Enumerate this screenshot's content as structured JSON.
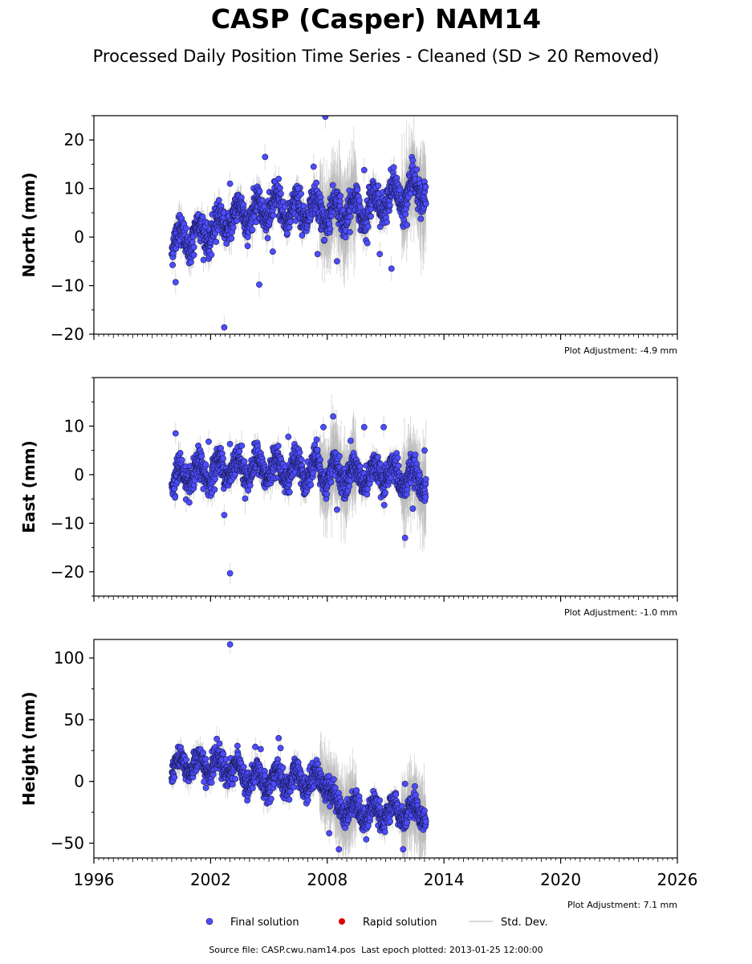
{
  "title": "CASP (Casper) NAM14",
  "subtitle": "Processed Daily Position Time Series - Cleaned (SD > 20 Removed)",
  "footer": {
    "source_label": "Source file:",
    "source_file": "CASP.cwu.nam14.pos",
    "last_epoch_label": "Last epoch plotted:",
    "last_epoch": "2013-01-25 12:00:00"
  },
  "legend": {
    "position": "bottom-center",
    "items": [
      {
        "label": "Final solution",
        "color": "#4444ee",
        "marker": "circle"
      },
      {
        "label": "Rapid solution",
        "color": "#dd0000",
        "marker": "circle"
      },
      {
        "label": "Std. Dev.",
        "color": "#cccccc",
        "marker": "line"
      }
    ]
  },
  "colors": {
    "final_fill": "#4d4dff",
    "final_edge": "#1a1a55",
    "sd_line": "#b8b8b8",
    "axis": "#000000"
  },
  "chart_data": [
    {
      "type": "scatter",
      "ylabel": "North (mm)",
      "xlim": [
        1996,
        2026
      ],
      "ylim": [
        -20,
        25
      ],
      "yticks": [
        -20,
        -10,
        0,
        10,
        20
      ],
      "xticks": [
        1996,
        2002,
        2008,
        2014,
        2020,
        2026
      ],
      "adjustment": "Plot Adjustment: -4.9 mm",
      "data_start": 2000.0,
      "data_end": 2013.07,
      "trend": [
        [
          2000.0,
          -1
        ],
        [
          2002.0,
          1
        ],
        [
          2003.0,
          4
        ],
        [
          2005.0,
          6
        ],
        [
          2008.0,
          5
        ],
        [
          2010.0,
          6
        ],
        [
          2012.0,
          9
        ],
        [
          2013.07,
          10
        ]
      ],
      "seasonal_amplitude": 2.5,
      "scatter_sd": 1.6,
      "outliers": [
        [
          2000.2,
          -9.3
        ],
        [
          2002.7,
          -18.6
        ],
        [
          2003.0,
          11.0
        ],
        [
          2004.5,
          -9.8
        ],
        [
          2004.8,
          16.5
        ],
        [
          2005.5,
          12.0
        ],
        [
          2006.5,
          10.0
        ],
        [
          2007.3,
          14.5
        ],
        [
          2007.9,
          24.8
        ],
        [
          2008.5,
          -5.0
        ],
        [
          2009.9,
          13.8
        ],
        [
          2010.7,
          -3.5
        ],
        [
          2011.3,
          -6.5
        ],
        [
          2012.4,
          15.8
        ],
        [
          2012.1,
          2.5
        ],
        [
          2005.2,
          -3.0
        ],
        [
          2007.5,
          -3.5
        ]
      ]
    },
    {
      "type": "scatter",
      "ylabel": "East (mm)",
      "xlim": [
        1996,
        2026
      ],
      "ylim": [
        -25,
        20
      ],
      "yticks": [
        -20,
        -10,
        0,
        10
      ],
      "xticks": [
        1996,
        2002,
        2008,
        2014,
        2020,
        2026
      ],
      "adjustment": "Plot Adjustment: -1.0 mm",
      "data_start": 2000.0,
      "data_end": 2013.07,
      "trend": [
        [
          2000.0,
          -1
        ],
        [
          2003.0,
          1.5
        ],
        [
          2006.0,
          1
        ],
        [
          2009.0,
          0
        ],
        [
          2011.0,
          0
        ],
        [
          2013.07,
          -1
        ]
      ],
      "seasonal_amplitude": 2.2,
      "scatter_sd": 1.4,
      "outliers": [
        [
          2000.2,
          8.5
        ],
        [
          2001.9,
          6.8
        ],
        [
          2002.7,
          -8.3
        ],
        [
          2003.0,
          -20.3
        ],
        [
          2003.0,
          6.3
        ],
        [
          2006.0,
          7.8
        ],
        [
          2007.8,
          9.8
        ],
        [
          2008.3,
          12.0
        ],
        [
          2008.5,
          -7.2
        ],
        [
          2009.2,
          7.0
        ],
        [
          2009.9,
          9.8
        ],
        [
          2010.9,
          9.8
        ],
        [
          2012.0,
          -13.0
        ],
        [
          2012.4,
          -7.0
        ],
        [
          2013.0,
          5.0
        ]
      ]
    },
    {
      "type": "scatter",
      "ylabel": "Height (mm)",
      "xlim": [
        1996,
        2026
      ],
      "ylim": [
        -62,
        115
      ],
      "yticks": [
        -50,
        0,
        50,
        100
      ],
      "xticks": [
        1996,
        2002,
        2008,
        2014,
        2020,
        2026
      ],
      "xlabel_ticks": [
        "1996",
        "2002",
        "2008",
        "2014",
        "2020",
        "2026"
      ],
      "adjustment": "Plot Adjustment: 7.1 mm",
      "data_start": 2000.0,
      "data_end": 2013.07,
      "trend": [
        [
          2000.0,
          14
        ],
        [
          2003.0,
          12
        ],
        [
          2004.0,
          2
        ],
        [
          2008.0,
          0
        ],
        [
          2008.4,
          -20
        ],
        [
          2010.0,
          -25
        ],
        [
          2013.07,
          -26
        ]
      ],
      "seasonal_amplitude": 7,
      "scatter_sd": 5,
      "outliers": [
        [
          2003.0,
          111
        ],
        [
          2004.3,
          28
        ],
        [
          2005.5,
          35
        ],
        [
          2005.6,
          27
        ],
        [
          2008.1,
          -42
        ],
        [
          2008.6,
          -55
        ],
        [
          2010.0,
          -47
        ],
        [
          2011.9,
          -55
        ],
        [
          2012.0,
          -2
        ],
        [
          2012.5,
          -4
        ]
      ]
    }
  ]
}
